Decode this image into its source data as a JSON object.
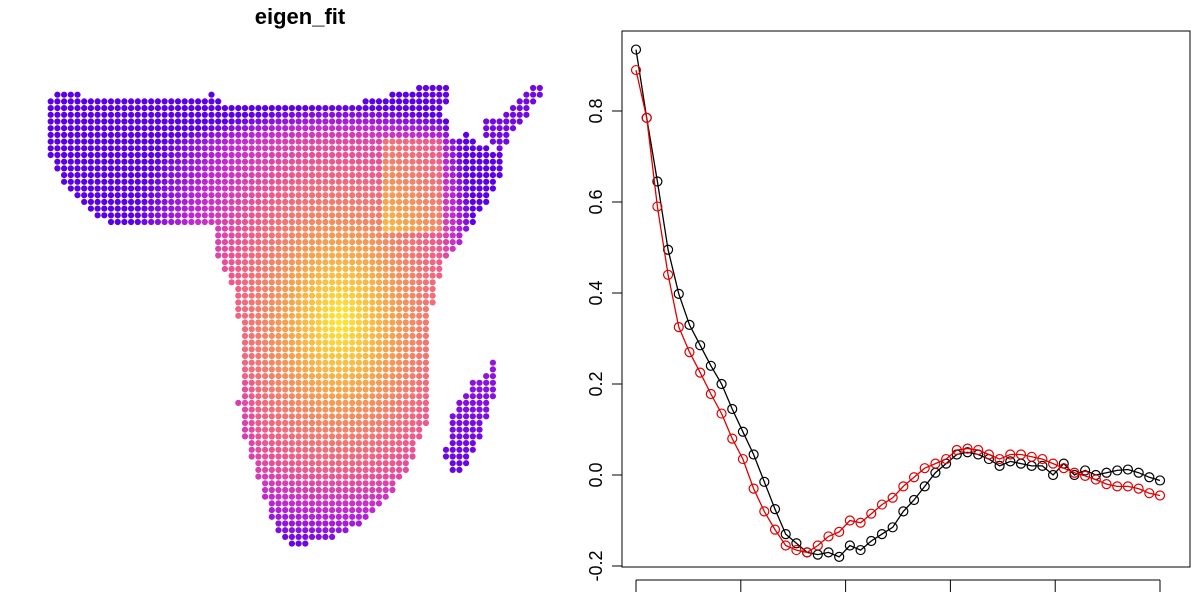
{
  "chart_data": [
    {
      "type": "scatter",
      "title": "eigen_fit",
      "description_colors": {
        "low": "#5b00e6",
        "mid_low": "#c026d3",
        "mid": "#ef5a8a",
        "mid_high": "#f5a050",
        "high": "#ffe830"
      },
      "legend": "none",
      "axes": "none"
    },
    {
      "type": "line",
      "title": "",
      "xlabel": "",
      "ylabel": "",
      "ylim": [
        -0.2,
        0.93
      ],
      "yticks": [
        -0.2,
        0.0,
        0.2,
        0.4,
        0.6,
        0.8
      ],
      "ytick_labels": [
        "-0.2",
        "0.0",
        "0.2",
        "0.4",
        "0.6",
        "0.8"
      ],
      "xlim": [
        1,
        50
      ],
      "xtick_count": 6,
      "grid": false,
      "legend": "none",
      "series": [
        {
          "color": "#000000",
          "marker": "open-circle",
          "values": [
            0.935,
            0.785,
            0.645,
            0.495,
            0.398,
            0.33,
            0.285,
            0.24,
            0.2,
            0.145,
            0.095,
            0.045,
            -0.015,
            -0.075,
            -0.13,
            -0.15,
            -0.17,
            -0.175,
            -0.17,
            -0.18,
            -0.155,
            -0.165,
            -0.145,
            -0.13,
            -0.115,
            -0.08,
            -0.055,
            -0.025,
            0.005,
            0.025,
            0.045,
            0.05,
            0.045,
            0.035,
            0.02,
            0.03,
            0.025,
            0.02,
            0.02,
            0.0,
            0.025,
            0.0,
            0.01,
            0.0,
            0.005,
            0.01,
            0.012,
            0.005,
            -0.005,
            -0.012
          ]
        },
        {
          "color": "#e00000",
          "marker": "open-circle",
          "values": [
            0.89,
            0.785,
            0.59,
            0.44,
            0.325,
            0.27,
            0.225,
            0.178,
            0.135,
            0.08,
            0.035,
            -0.03,
            -0.08,
            -0.12,
            -0.155,
            -0.165,
            -0.17,
            -0.155,
            -0.135,
            -0.125,
            -0.1,
            -0.105,
            -0.085,
            -0.065,
            -0.05,
            -0.025,
            -0.005,
            0.015,
            0.025,
            0.035,
            0.055,
            0.058,
            0.055,
            0.045,
            0.035,
            0.045,
            0.045,
            0.04,
            0.035,
            0.025,
            0.015,
            0.005,
            -0.002,
            -0.01,
            -0.02,
            -0.025,
            -0.025,
            -0.03,
            -0.04,
            -0.045
          ]
        }
      ]
    }
  ]
}
